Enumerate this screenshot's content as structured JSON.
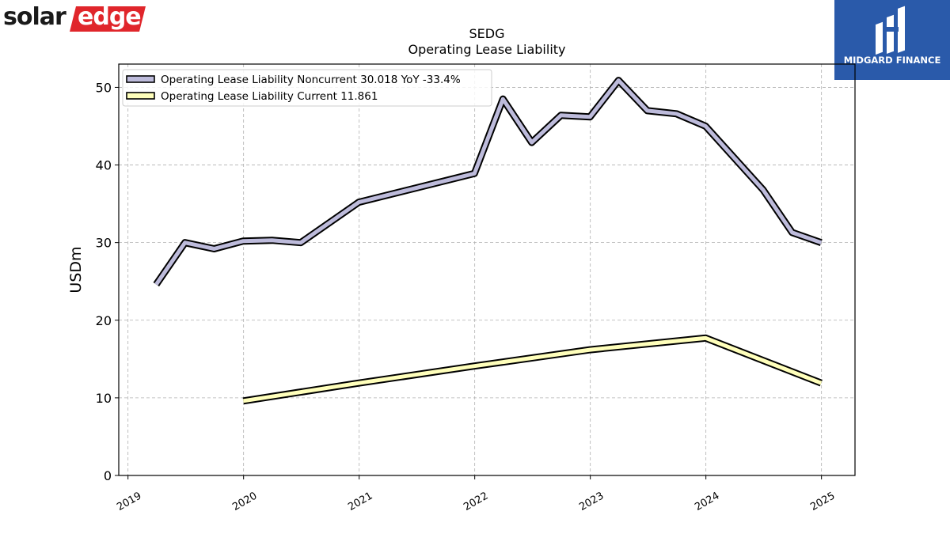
{
  "header": {
    "company_logo_text_dark": "solar",
    "company_logo_text_light": "edge",
    "publisher_logo_text": "MIDGARD FINANCE"
  },
  "chart_data": {
    "type": "line",
    "title": "SEDG",
    "subtitle": "Operating Lease Liability",
    "xlabel": "",
    "ylabel": "USDm",
    "xlim": [
      2018.92,
      2025.29
    ],
    "ylim": [
      0,
      53
    ],
    "yticks": [
      0,
      10,
      20,
      30,
      40,
      50
    ],
    "xticks": [
      2019,
      2020,
      2021,
      2022,
      2023,
      2024,
      2025
    ],
    "xtick_labels": [
      "2019",
      "2020",
      "2021",
      "2022",
      "2023",
      "2024",
      "2025"
    ],
    "grid": true,
    "legend_position": "top-left",
    "series": [
      {
        "name": "Operating Lease Liability Noncurrent",
        "legend_label": "Operating Lease Liability Noncurrent  30.018 YoY -33.4%",
        "color": "#bdbbdb",
        "x": [
          "2019-03-31",
          "2019-06-30",
          "2019-09-30",
          "2019-12-31",
          "2020-03-31",
          "2020-06-30",
          "2020-12-31",
          "2021-12-31",
          "2022-03-31",
          "2022-06-30",
          "2022-09-30",
          "2022-12-31",
          "2023-03-31",
          "2023-06-30",
          "2023-09-30",
          "2023-12-31",
          "2024-06-30",
          "2024-09-30",
          "2024-12-31"
        ],
        "y": [
          24.6,
          30.0,
          29.2,
          30.2,
          30.3,
          30.0,
          35.2,
          38.9,
          48.5,
          42.9,
          46.4,
          46.2,
          50.9,
          47.0,
          46.6,
          45.0,
          36.8,
          31.3,
          30.0
        ]
      },
      {
        "name": "Operating Lease Liability Current",
        "legend_label": "Operating Lease Liability Current  11.861",
        "color": "#ffffbb",
        "x": [
          "2019-12-31",
          "2020-12-31",
          "2021-12-31",
          "2022-12-31",
          "2023-12-31",
          "2024-12-31"
        ],
        "y": [
          9.6,
          11.9,
          14.1,
          16.2,
          17.7,
          11.9
        ]
      }
    ]
  }
}
